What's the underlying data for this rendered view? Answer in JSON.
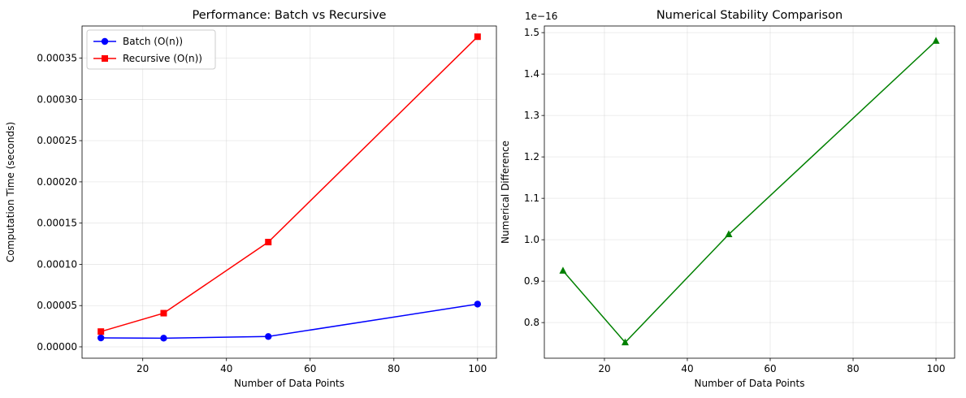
{
  "chart_data": [
    {
      "type": "line",
      "title": "Performance: Batch vs Recursive",
      "xlabel": "Number of Data Points",
      "ylabel": "Computation Time (seconds)",
      "x": [
        10,
        25,
        50,
        100
      ],
      "xlim": [
        5.5,
        104.5
      ],
      "ylim": [
        -1.38e-05,
        0.000389
      ],
      "xticks": [
        20,
        40,
        60,
        80,
        100
      ],
      "xtick_labels": [
        "20",
        "40",
        "60",
        "80",
        "100"
      ],
      "yticks": [
        0,
        5e-05,
        0.0001,
        0.00015,
        0.0002,
        0.00025,
        0.0003,
        0.00035
      ],
      "ytick_labels": [
        "0.00000",
        "0.00005",
        "0.00010",
        "0.00015",
        "0.00020",
        "0.00025",
        "0.00030",
        "0.00035"
      ],
      "grid": true,
      "legend": "top-left",
      "series": [
        {
          "name": "Batch (O(n))",
          "values": [
            1.08e-05,
            1.05e-05,
            1.25e-05,
            5.18e-05
          ],
          "color": "#0000ff",
          "marker": "circle"
        },
        {
          "name": "Recursive (O(n))",
          "values": [
            1.85e-05,
            4.08e-05,
            0.000127,
            0.000376
          ],
          "color": "#ff0000",
          "marker": "square"
        }
      ]
    },
    {
      "type": "line",
      "title": "Numerical Stability Comparison",
      "xlabel": "Number of Data Points",
      "ylabel": "Numerical Difference",
      "offset_text": "1e−16",
      "x": [
        10,
        25,
        50,
        100
      ],
      "xlim": [
        5.5,
        104.5
      ],
      "ylim": [
        0.714,
        1.516
      ],
      "xticks": [
        20,
        40,
        60,
        80,
        100
      ],
      "xtick_labels": [
        "20",
        "40",
        "60",
        "80",
        "100"
      ],
      "yticks": [
        0.8,
        0.9,
        1.0,
        1.1,
        1.2,
        1.3,
        1.4,
        1.5
      ],
      "ytick_labels": [
        "0.8",
        "0.9",
        "1.0",
        "1.1",
        "1.2",
        "1.3",
        "1.4",
        "1.5"
      ],
      "grid": true,
      "series": [
        {
          "values": [
            0.925,
            0.752,
            1.013,
            1.48
          ],
          "color": "#008000",
          "marker": "triangle"
        }
      ]
    }
  ]
}
